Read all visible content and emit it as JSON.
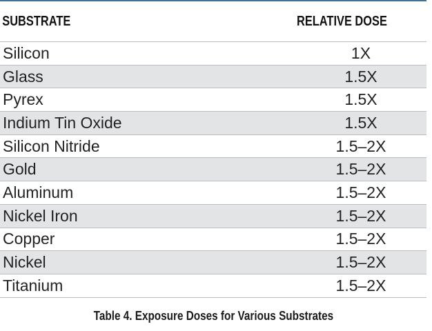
{
  "table": {
    "headers": {
      "substrate": "SUBSTRATE",
      "dose": "RELATIVE DOSE"
    },
    "rows": [
      {
        "substrate": "Silicon",
        "dose": "1X"
      },
      {
        "substrate": "Glass",
        "dose": "1.5X"
      },
      {
        "substrate": "Pyrex",
        "dose": "1.5X"
      },
      {
        "substrate": "Indium Tin Oxide",
        "dose": "1.5X"
      },
      {
        "substrate": "Silicon Nitride",
        "dose": "1.5–2X"
      },
      {
        "substrate": "Gold",
        "dose": "1.5–2X"
      },
      {
        "substrate": "Aluminum",
        "dose": "1.5–2X"
      },
      {
        "substrate": "Nickel Iron",
        "dose": "1.5–2X"
      },
      {
        "substrate": "Copper",
        "dose": "1.5–2X"
      },
      {
        "substrate": "Nickel",
        "dose": "1.5–2X"
      },
      {
        "substrate": "Titanium",
        "dose": "1.5–2X"
      }
    ],
    "caption": "Table 4. Exposure Doses for Various Substrates"
  },
  "colors": {
    "top_rule": "#3f6f95",
    "row_shade": "#e3e4e6",
    "row_border": "#b9bcc0"
  }
}
